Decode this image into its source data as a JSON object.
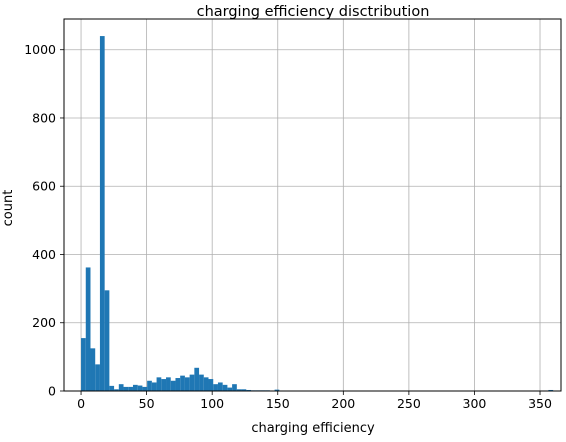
{
  "chart_data": {
    "type": "bar",
    "title": "charging efficiency disctribution",
    "xlabel": "charging efficiency",
    "ylabel": "count",
    "xlim": [
      -13,
      366
    ],
    "ylim": [
      0,
      1090
    ],
    "xticks": [
      0,
      50,
      100,
      150,
      200,
      250,
      300,
      350
    ],
    "yticks": [
      0,
      200,
      400,
      600,
      800,
      1000
    ],
    "grid": true,
    "bin_width": 3.6,
    "bin_starts": [
      0,
      3.6,
      7.2,
      10.8,
      14.4,
      18.0,
      21.6,
      25.2,
      28.8,
      32.4,
      36.0,
      39.6,
      43.2,
      46.8,
      50.4,
      54.0,
      57.6,
      61.2,
      64.8,
      68.4,
      72.0,
      75.6,
      79.2,
      82.8,
      86.4,
      90.0,
      93.6,
      97.2,
      100.8,
      104.4,
      108.0,
      111.6,
      115.2,
      118.8,
      122.4,
      126.0,
      129.6,
      133.2,
      136.8,
      140.4,
      144.0,
      147.6,
      151.2,
      154.8,
      158.4,
      162.0,
      165.6,
      169.2,
      172.8,
      176.4,
      180.0,
      183.6,
      187.2,
      190.8,
      194.4,
      198.0,
      201.6,
      205.2,
      208.8,
      212.4,
      216.0,
      219.6,
      223.2,
      226.8,
      230.4,
      234.0,
      237.6,
      241.2,
      244.8,
      248.4,
      252.0,
      255.6,
      259.2,
      262.8,
      266.4,
      270.0,
      273.6,
      277.2,
      280.8,
      284.4,
      288.0,
      291.6,
      295.2,
      298.8,
      302.4,
      306.0,
      309.6,
      313.2,
      316.8,
      320.4,
      324.0,
      327.6,
      331.2,
      334.8,
      338.4,
      342.0,
      345.6,
      349.2,
      352.8,
      356.4
    ],
    "values": [
      155,
      362,
      125,
      78,
      1040,
      295,
      15,
      5,
      20,
      12,
      12,
      18,
      16,
      12,
      30,
      25,
      40,
      35,
      40,
      30,
      38,
      45,
      40,
      48,
      68,
      48,
      40,
      35,
      20,
      25,
      18,
      10,
      20,
      5,
      5,
      3,
      2,
      2,
      2,
      2,
      1,
      4,
      1,
      1,
      1,
      1,
      1,
      1,
      1,
      1,
      1,
      1,
      1,
      1,
      1,
      1,
      1,
      1,
      1,
      1,
      1,
      1,
      1,
      1,
      1,
      1,
      1,
      1,
      1,
      1,
      1,
      1,
      1,
      1,
      1,
      1,
      1,
      1,
      1,
      1,
      1,
      1,
      1,
      1,
      1,
      1,
      1,
      1,
      1,
      1,
      1,
      1,
      1,
      1,
      1,
      1,
      1,
      1,
      1,
      3
    ],
    "bar_color": "#1f77b4",
    "grid_color": "#b0b0b0",
    "axis_color": "#000000"
  }
}
